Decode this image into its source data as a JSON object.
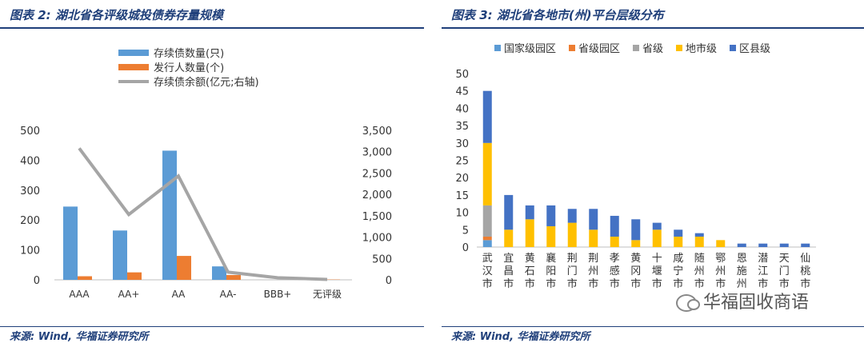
{
  "left_panel": {
    "title": "图表 2:  湖北省各评级城投债券存量规模",
    "source": "来源:  Wind,  华福证券研究所"
  },
  "right_panel": {
    "title": "图表 3:  湖北省各地市(州)平台层级分布",
    "source": "来源:  Wind,  华福证券研究所"
  },
  "watermark": "华福固收商语",
  "chart_data": [
    {
      "type": "bar",
      "categories": [
        "AAA",
        "AA+",
        "AA",
        "AA-",
        "BBB+",
        "无评级"
      ],
      "series": [
        {
          "name": "存续债数量(只)",
          "type": "bar",
          "axis": "left",
          "color": "#5b9bd5",
          "values": [
            245,
            165,
            432,
            45,
            0,
            0
          ]
        },
        {
          "name": "发行人数量(个)",
          "type": "bar",
          "axis": "left",
          "color": "#ed7d31",
          "values": [
            12,
            25,
            80,
            16,
            0,
            1
          ]
        },
        {
          "name": "存续债余额(亿元;右轴)",
          "type": "line",
          "axis": "right",
          "color": "#a5a5a5",
          "values": [
            3080,
            1530,
            2430,
            180,
            50,
            10
          ]
        }
      ],
      "ylim_left": [
        0,
        500
      ],
      "yticks_left": [
        "0",
        "100",
        "200",
        "300",
        "400",
        "500"
      ],
      "ylim_right": [
        0,
        3500
      ],
      "yticks_right": [
        "0",
        "500",
        "1,000",
        "1,500",
        "2,000",
        "2,500",
        "3,000",
        "3,500"
      ],
      "grid": false,
      "legend_position": "top-center"
    },
    {
      "type": "bar",
      "stacked": true,
      "categories": [
        "武汉市",
        "宜昌市",
        "黄石市",
        "襄阳市",
        "荆门市",
        "荆州市",
        "孝感市",
        "黄冈市",
        "十堰市",
        "咸宁市",
        "随州市",
        "鄂州市",
        "恩施州",
        "潜江市",
        "天门市",
        "仙桃市"
      ],
      "series": [
        {
          "name": "国家级园区",
          "color": "#5b9bd5",
          "values": [
            2,
            0,
            0,
            0,
            0,
            0,
            0,
            0,
            0,
            0,
            0,
            0,
            0,
            0,
            0,
            0
          ]
        },
        {
          "name": "省级园区",
          "color": "#ed7d31",
          "values": [
            1,
            0,
            0,
            0,
            0,
            0,
            0,
            0,
            0,
            0,
            0,
            0,
            0,
            0,
            0,
            0
          ]
        },
        {
          "name": "省级",
          "color": "#a5a5a5",
          "values": [
            9,
            0,
            0,
            0,
            0,
            0,
            0,
            0,
            0,
            0,
            0,
            0,
            0,
            0,
            0,
            0
          ]
        },
        {
          "name": "地市级",
          "color": "#ffc000",
          "values": [
            18,
            5,
            8,
            6,
            7,
            5,
            3,
            2,
            5,
            3,
            3,
            2,
            0,
            0,
            0,
            0
          ]
        },
        {
          "name": "区县级",
          "color": "#4472c4",
          "values": [
            15,
            10,
            4,
            6,
            4,
            6,
            6,
            6,
            2,
            2,
            1,
            0,
            1,
            1,
            1,
            1
          ]
        }
      ],
      "ylim": [
        0,
        50
      ],
      "yticks": [
        "0",
        "5",
        "10",
        "15",
        "20",
        "25",
        "30",
        "35",
        "40",
        "45",
        "50"
      ],
      "grid": false,
      "legend_position": "top-center"
    }
  ]
}
